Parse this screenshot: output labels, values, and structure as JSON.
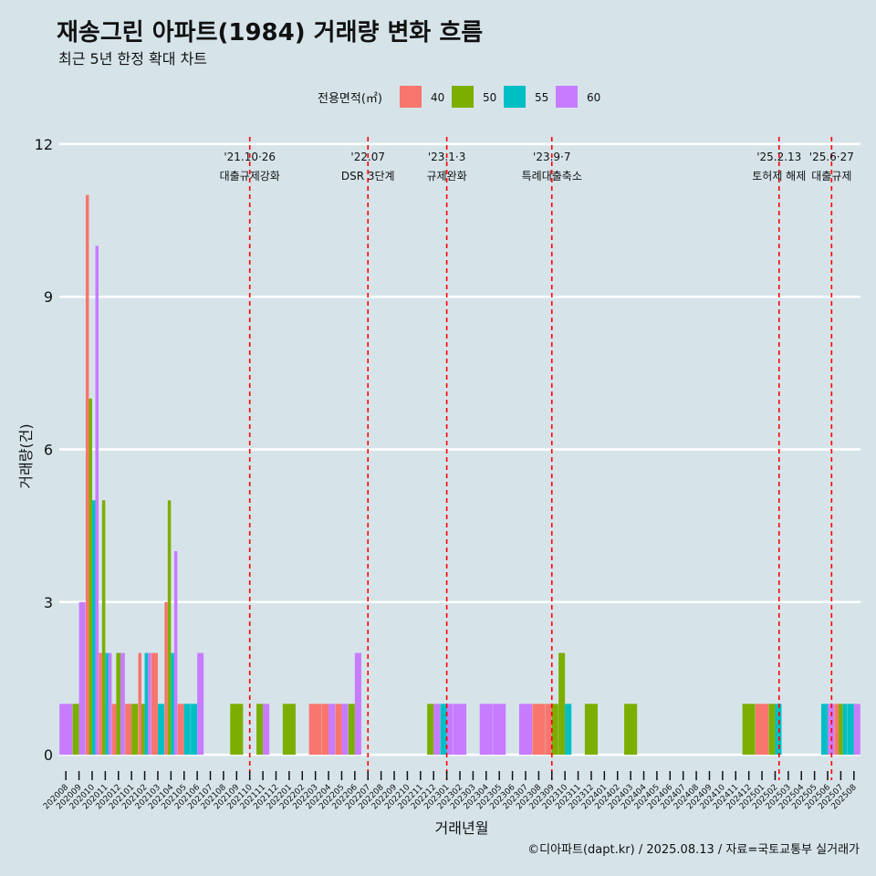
{
  "chart_data": {
    "type": "bar",
    "title": "재송그린 아파트(1984) 거래량 변화 흐름",
    "subtitle": "최근 5년 한정 확대 차트",
    "xlabel": "거래년월",
    "ylabel": "거래량(건)",
    "ylim": [
      -0.5,
      12.5
    ],
    "yticks": [
      "0",
      "3",
      "6",
      "9",
      "12"
    ],
    "grid": "horizontal",
    "legend": {
      "title": "전용면적(㎡)",
      "position": "top"
    },
    "series": [
      {
        "name": "40",
        "color": "#f8766d"
      },
      {
        "name": "50",
        "color": "#7cae00"
      },
      {
        "name": "55",
        "color": "#00bfc4"
      },
      {
        "name": "60",
        "color": "#c77cff"
      }
    ],
    "categories": [
      "202008",
      "202009",
      "202010",
      "202011",
      "202012",
      "202101",
      "202102",
      "202103",
      "202104",
      "202105",
      "202106",
      "202107",
      "202108",
      "202109",
      "202110",
      "202111",
      "202112",
      "202201",
      "202202",
      "202203",
      "202204",
      "202205",
      "202206",
      "202207",
      "202208",
      "202209",
      "202210",
      "202211",
      "202212",
      "202301",
      "202302",
      "202303",
      "202304",
      "202305",
      "202306",
      "202307",
      "202308",
      "202309",
      "202310",
      "202311",
      "202312",
      "202401",
      "202402",
      "202403",
      "202404",
      "202405",
      "202406",
      "202407",
      "202408",
      "202409",
      "202410",
      "202411",
      "202412",
      "202501",
      "202502",
      "202503",
      "202504",
      "202505",
      "202506",
      "202507",
      "202508"
    ],
    "values": [
      {
        "month": "202008",
        "sizes": [
          "60"
        ],
        "counts": [
          1
        ]
      },
      {
        "month": "202009",
        "sizes": [
          "50",
          "60"
        ],
        "counts": [
          1,
          3
        ]
      },
      {
        "month": "202010",
        "sizes": [
          "40",
          "50",
          "55",
          "60"
        ],
        "counts": [
          11,
          7,
          5,
          10
        ]
      },
      {
        "month": "202011",
        "sizes": [
          "40",
          "50",
          "55",
          "60"
        ],
        "counts": [
          2,
          5,
          2,
          2
        ]
      },
      {
        "month": "202012",
        "sizes": [
          "40",
          "50",
          "60"
        ],
        "counts": [
          1,
          2,
          2
        ]
      },
      {
        "month": "202101",
        "sizes": [
          "40",
          "50"
        ],
        "counts": [
          1,
          1
        ]
      },
      {
        "month": "202102",
        "sizes": [
          "40",
          "50",
          "55",
          "60"
        ],
        "counts": [
          2,
          1,
          2,
          2
        ]
      },
      {
        "month": "202103",
        "sizes": [
          "40",
          "55"
        ],
        "counts": [
          2,
          1
        ]
      },
      {
        "month": "202104",
        "sizes": [
          "40",
          "50",
          "55",
          "60"
        ],
        "counts": [
          3,
          5,
          2,
          4
        ]
      },
      {
        "month": "202105",
        "sizes": [
          "40",
          "55"
        ],
        "counts": [
          1,
          1
        ]
      },
      {
        "month": "202106",
        "sizes": [
          "55",
          "60"
        ],
        "counts": [
          1,
          2
        ]
      },
      {
        "month": "202109",
        "sizes": [
          "50"
        ],
        "counts": [
          1
        ]
      },
      {
        "month": "202111",
        "sizes": [
          "50",
          "60"
        ],
        "counts": [
          1,
          1
        ]
      },
      {
        "month": "202201",
        "sizes": [
          "50"
        ],
        "counts": [
          1
        ]
      },
      {
        "month": "202203",
        "sizes": [
          "40"
        ],
        "counts": [
          1
        ]
      },
      {
        "month": "202204",
        "sizes": [
          "40",
          "60"
        ],
        "counts": [
          1,
          1
        ]
      },
      {
        "month": "202205",
        "sizes": [
          "40",
          "60"
        ],
        "counts": [
          1,
          1
        ]
      },
      {
        "month": "202206",
        "sizes": [
          "50",
          "60"
        ],
        "counts": [
          1,
          2
        ]
      },
      {
        "month": "202212",
        "sizes": [
          "50",
          "60"
        ],
        "counts": [
          1,
          1
        ]
      },
      {
        "month": "202301",
        "sizes": [
          "55",
          "60"
        ],
        "counts": [
          1,
          1
        ]
      },
      {
        "month": "202302",
        "sizes": [
          "60"
        ],
        "counts": [
          1
        ]
      },
      {
        "month": "202304",
        "sizes": [
          "60"
        ],
        "counts": [
          1
        ]
      },
      {
        "month": "202305",
        "sizes": [
          "60"
        ],
        "counts": [
          1
        ]
      },
      {
        "month": "202307",
        "sizes": [
          "60"
        ],
        "counts": [
          1
        ]
      },
      {
        "month": "202308",
        "sizes": [
          "40"
        ],
        "counts": [
          1
        ]
      },
      {
        "month": "202309",
        "sizes": [
          "40",
          "50"
        ],
        "counts": [
          1,
          1
        ]
      },
      {
        "month": "202310",
        "sizes": [
          "50",
          "55"
        ],
        "counts": [
          2,
          1
        ]
      },
      {
        "month": "202312",
        "sizes": [
          "50"
        ],
        "counts": [
          1
        ]
      },
      {
        "month": "202403",
        "sizes": [
          "50"
        ],
        "counts": [
          1
        ]
      },
      {
        "month": "202412",
        "sizes": [
          "50"
        ],
        "counts": [
          1
        ]
      },
      {
        "month": "202501",
        "sizes": [
          "40"
        ],
        "counts": [
          1
        ]
      },
      {
        "month": "202502",
        "sizes": [
          "50",
          "55"
        ],
        "counts": [
          1,
          1
        ]
      },
      {
        "month": "202506",
        "sizes": [
          "55",
          "60"
        ],
        "counts": [
          1,
          1
        ]
      },
      {
        "month": "202507",
        "sizes": [
          "40",
          "50",
          "55"
        ],
        "counts": [
          1,
          1,
          1
        ]
      },
      {
        "month": "202508",
        "sizes": [
          "55",
          "60"
        ],
        "counts": [
          1,
          1
        ]
      }
    ],
    "annotations": [
      {
        "x": "202110",
        "offset": 0.0,
        "date": "'21.10·26",
        "label": "대출규제강화"
      },
      {
        "x": "202207",
        "offset": 0.0,
        "date": "'22.07",
        "label": "DSR 3단계"
      },
      {
        "x": "202301",
        "offset": 0.0,
        "date": "'23.1·3",
        "label": "규제완화"
      },
      {
        "x": "202309",
        "offset": 0.0,
        "date": "'23.9·7",
        "label": "특례대출축소"
      },
      {
        "x": "202502",
        "offset": 0.3,
        "date": "'25.2.13",
        "label": "토허제 해제"
      },
      {
        "x": "202506",
        "offset": 0.3,
        "date": "'25.6·27",
        "label": "대출규제"
      }
    ],
    "line_color": "#ff0000"
  },
  "caption": "©디아파트(dapt.kr) / 2025.08.13 / 자료=국토교통부 실거래가"
}
